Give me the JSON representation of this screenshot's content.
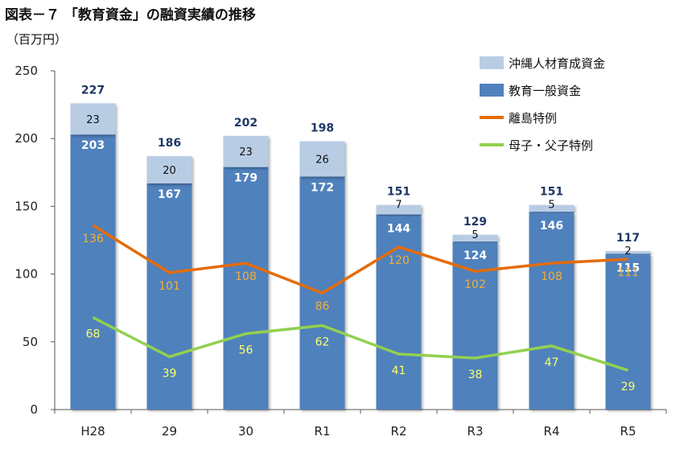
{
  "header": {
    "title": "図表－７ 「教育資金」の融資実績の推移",
    "unit": "（百万円）"
  },
  "colors": {
    "okinawa": "#b8cce4",
    "general": "#4f81bd",
    "island": "#e46c0a",
    "single_parent": "#92d050",
    "total_label": "#1f3864",
    "island_label": "#f2b035",
    "single_label": "#ffff66",
    "axis": "#555555"
  },
  "chart_data": {
    "type": "bar",
    "stacked": true,
    "categories": [
      "H28",
      "29",
      "30",
      "R1",
      "R2",
      "R3",
      "R4",
      "R5"
    ],
    "ylim": [
      0,
      250
    ],
    "yticks": [
      0,
      50,
      100,
      150,
      200,
      250
    ],
    "grid": false,
    "legend_position": "top-right",
    "totals": [
      227,
      186,
      202,
      198,
      151,
      129,
      151,
      117
    ],
    "series": [
      {
        "name": "教育一般資金",
        "kind": "bar",
        "values": [
          203,
          167,
          179,
          172,
          144,
          124,
          146,
          115
        ]
      },
      {
        "name": "沖縄人材育成資金",
        "kind": "bar",
        "values": [
          23,
          20,
          23,
          26,
          7,
          5,
          5,
          2
        ]
      },
      {
        "name": "離島特例",
        "kind": "line",
        "values": [
          136,
          101,
          108,
          86,
          120,
          102,
          108,
          111
        ]
      },
      {
        "name": "母子・父子特例",
        "kind": "line",
        "values": [
          68,
          39,
          56,
          62,
          41,
          38,
          47,
          29
        ]
      }
    ],
    "legend_order": [
      "沖縄人材育成資金",
      "教育一般資金",
      "離島特例",
      "母子・父子特例"
    ]
  }
}
